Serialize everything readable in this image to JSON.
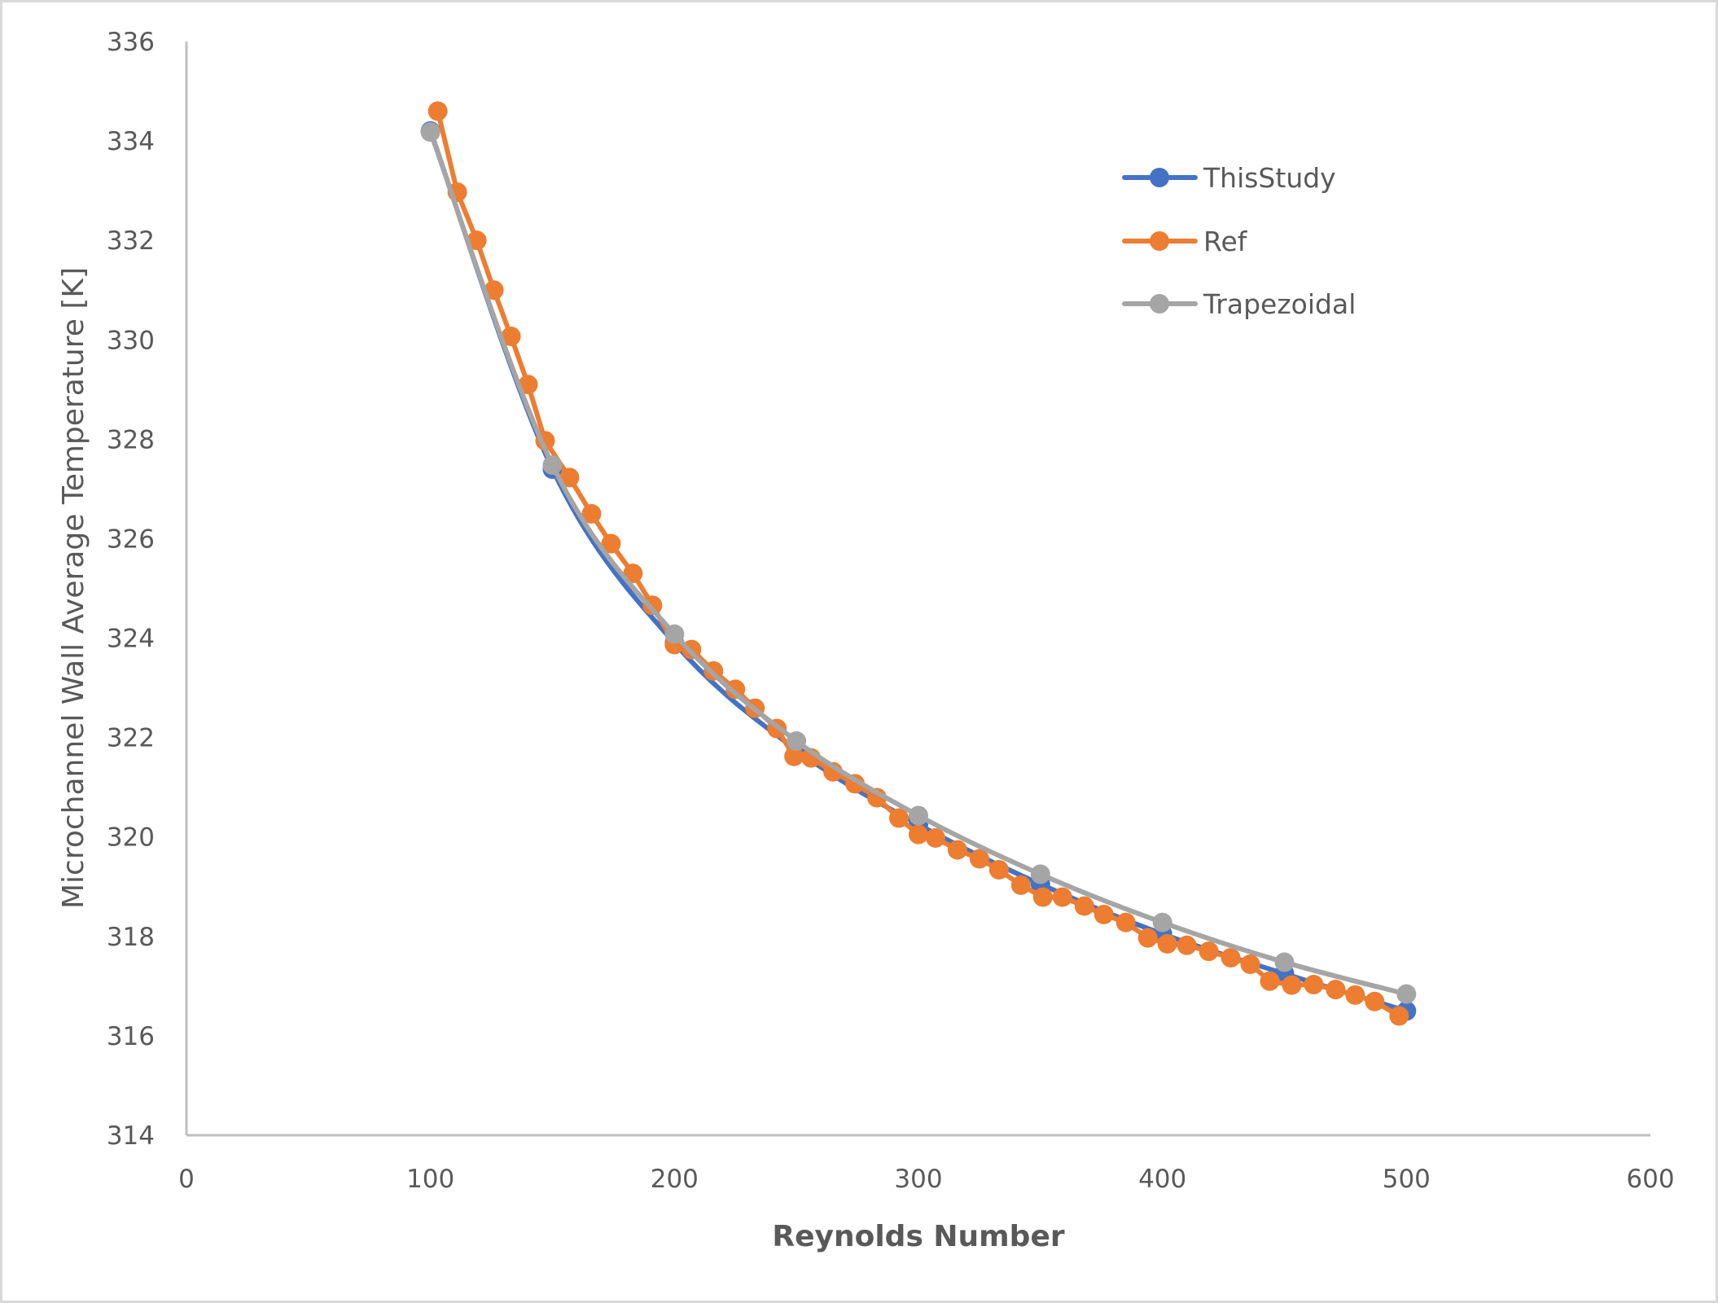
{
  "chart_data": {
    "type": "line",
    "title": "",
    "xlabel": "Reynolds Number",
    "ylabel": "Microchannel Wall Average Temperature [K]",
    "xlim": [
      0,
      600
    ],
    "ylim": [
      314,
      336
    ],
    "xticks": [
      0,
      100,
      200,
      300,
      400,
      500,
      600
    ],
    "yticks": [
      314,
      316,
      318,
      320,
      322,
      324,
      326,
      328,
      330,
      332,
      334,
      336
    ],
    "grid": false,
    "legend_position": "upper right (inside plot)",
    "series": [
      {
        "name": "ThisStudy",
        "color": "#4472C4",
        "smooth": true,
        "x": [
          100,
          150,
          200,
          250,
          300,
          350,
          400,
          450,
          500
        ],
        "y": [
          334.2,
          327.4,
          323.9,
          321.75,
          320.25,
          319.05,
          318.05,
          317.25,
          316.5
        ]
      },
      {
        "name": "Ref",
        "color": "#ED7D31",
        "smooth": false,
        "x": [
          103,
          111,
          119,
          126,
          133,
          140,
          147,
          157,
          166,
          174,
          183,
          191,
          200,
          207,
          216,
          225,
          233,
          242,
          249,
          256,
          265,
          274,
          283,
          292,
          300,
          307,
          316,
          325,
          333,
          342,
          351,
          359,
          368,
          376,
          385,
          394,
          402,
          410,
          419,
          428,
          436,
          444,
          453,
          462,
          471,
          479,
          487,
          497
        ],
        "y": [
          334.6,
          332.97,
          332.0,
          331.0,
          330.07,
          329.1,
          327.97,
          327.23,
          326.5,
          325.9,
          325.3,
          324.66,
          323.87,
          323.77,
          323.34,
          322.97,
          322.59,
          322.18,
          321.62,
          321.59,
          321.31,
          321.07,
          320.79,
          320.38,
          320.05,
          319.98,
          319.74,
          319.56,
          319.34,
          319.03,
          318.79,
          318.79,
          318.61,
          318.44,
          318.28,
          317.97,
          317.85,
          317.82,
          317.7,
          317.57,
          317.44,
          317.1,
          317.02,
          317.03,
          316.93,
          316.82,
          316.69,
          316.4
        ]
      },
      {
        "name": "Trapezoidal",
        "color": "#A5A5A5",
        "smooth": true,
        "x": [
          100,
          150,
          200,
          250,
          300,
          350,
          400,
          450,
          500
        ],
        "y": [
          334.18,
          327.48,
          324.08,
          321.93,
          320.43,
          319.25,
          318.28,
          317.48,
          316.84
        ]
      }
    ]
  },
  "axes": {
    "x_title": "Reynolds Number",
    "y_title": "Microchannel Wall Average Temperature [K]",
    "axis_color": "#bfbfbf",
    "text_color": "#595959"
  },
  "legend": {
    "items": [
      {
        "label": "ThisStudy",
        "color": "#4472C4"
      },
      {
        "label": "Ref",
        "color": "#ED7D31"
      },
      {
        "label": "Trapezoidal",
        "color": "#A5A5A5"
      }
    ]
  }
}
